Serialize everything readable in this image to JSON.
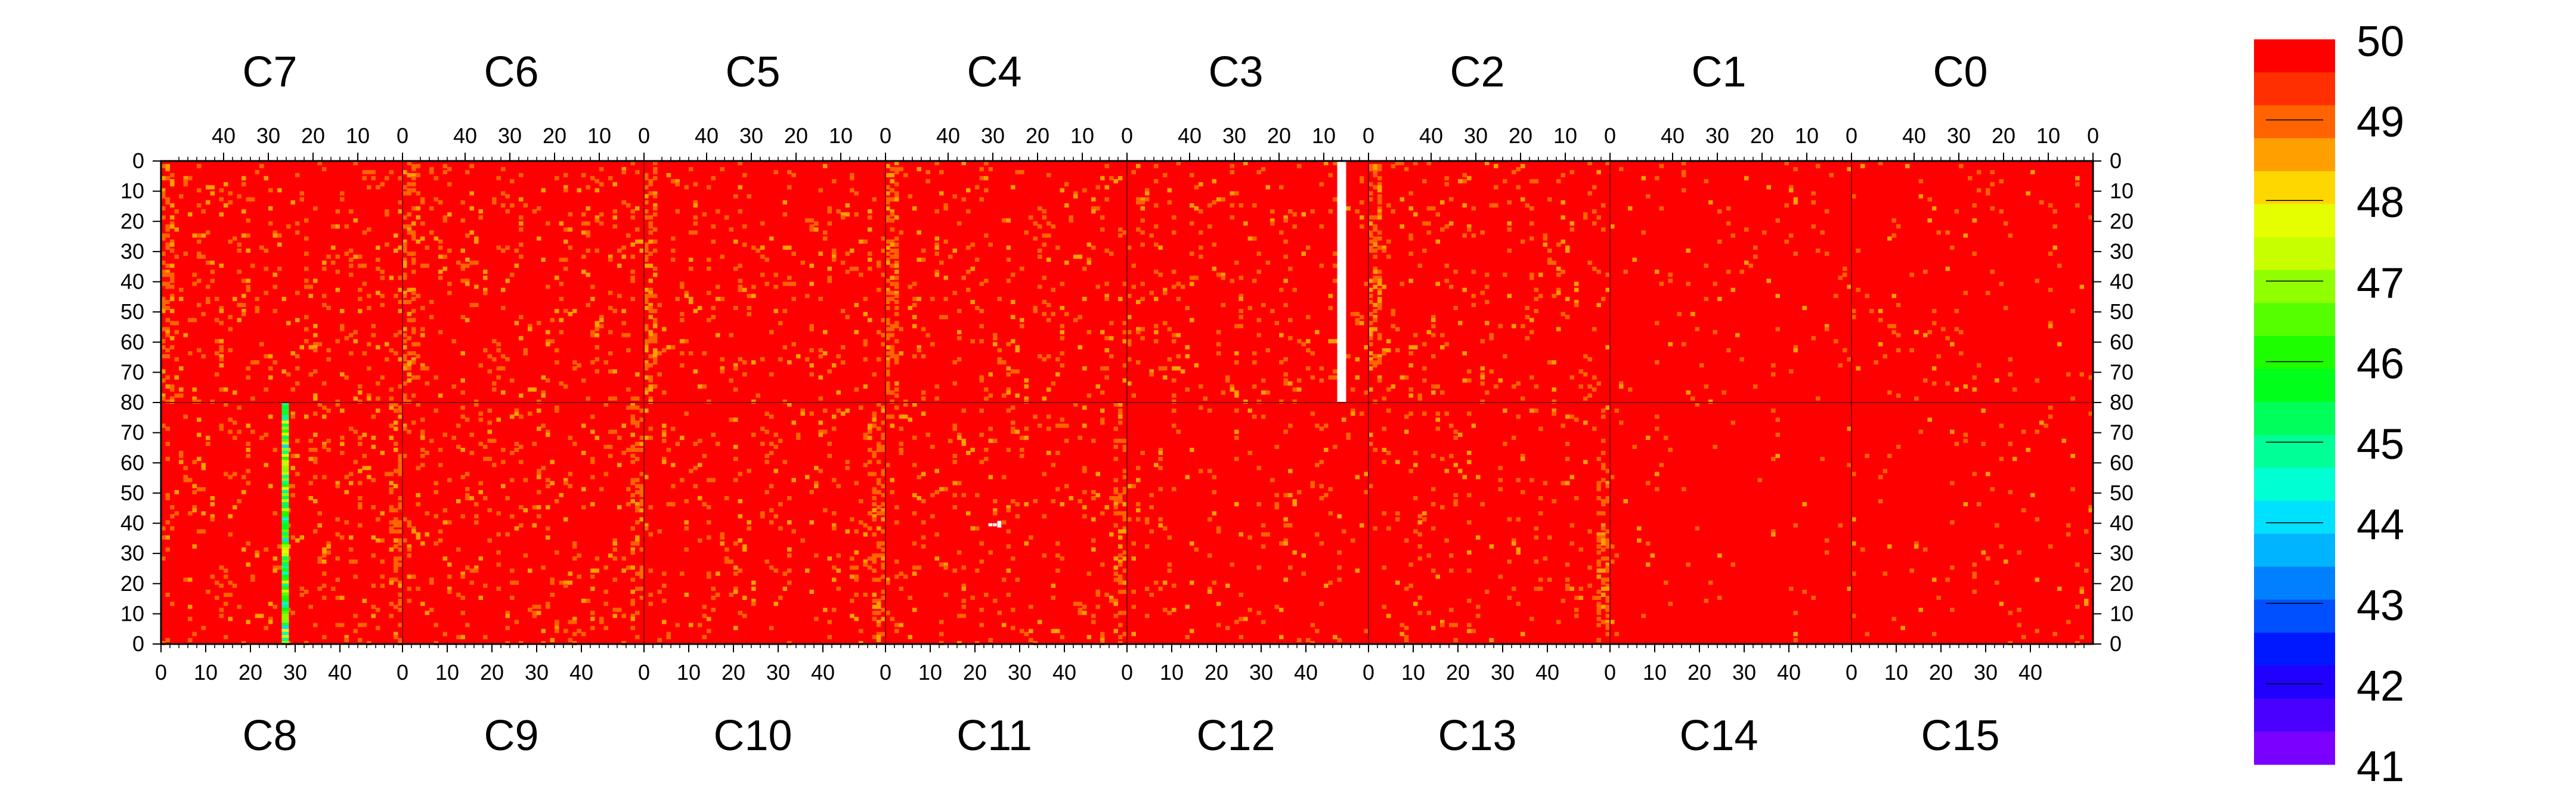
{
  "chart_data": {
    "type": "heatmap",
    "title": "",
    "top_chip_labels": [
      "C7",
      "C6",
      "C5",
      "C4",
      "C3",
      "C2",
      "C1",
      "C0"
    ],
    "bottom_chip_labels": [
      "C8",
      "C9",
      "C10",
      "C11",
      "C12",
      "C13",
      "C14",
      "C15"
    ],
    "top_x_ticks": [
      "40",
      "30",
      "20",
      "10",
      "0"
    ],
    "bottom_x_ticks": [
      "0",
      "10",
      "20",
      "30",
      "40"
    ],
    "y_ticks_top_half": [
      "0",
      "10",
      "20",
      "30",
      "40",
      "50",
      "60",
      "70",
      "80"
    ],
    "y_ticks_bottom_half": [
      "70",
      "60",
      "50",
      "40",
      "30",
      "20",
      "10",
      "0"
    ],
    "columns_per_chip": 54,
    "rows_per_half": 80,
    "z_range": [
      41,
      50
    ],
    "colorbar_labels": [
      "50",
      "49",
      "48",
      "47",
      "46",
      "45",
      "44",
      "43",
      "42",
      "41"
    ],
    "colorbar_colors": [
      "#ff0000",
      "#ff2f00",
      "#ff6400",
      "#ffa000",
      "#ffd700",
      "#e6ff00",
      "#c8ff00",
      "#90ff00",
      "#55ff00",
      "#1dff00",
      "#00ff1a",
      "#00ff5a",
      "#00ff96",
      "#00ffd2",
      "#00e0ff",
      "#00b4ff",
      "#0080ff",
      "#0050ff",
      "#0018ff",
      "#2000ff",
      "#4a00ff",
      "#7a00ff"
    ],
    "baseline_value": 50,
    "features": [
      {
        "description": "masked (white) column",
        "chip": "C3",
        "column": 7,
        "rows": "0-80 (top half)",
        "value": null
      },
      {
        "description": "low-value column",
        "chip": "C8",
        "column": 28,
        "rows": "0-80 (bottom half)",
        "values_range": [
          44,
          48
        ]
      },
      {
        "description": "masked pixels",
        "chip": "C11",
        "columns": [
          23,
          24,
          25
        ],
        "row": 39,
        "value": null
      },
      {
        "description": "noisy columns (49-47)",
        "chips": [
          "C7/C8",
          "C6/C9",
          "C5/C10",
          "C4/C11",
          "C2/C13"
        ],
        "note": "near column 0 of each chip"
      },
      {
        "description": "quiet chips (mostly 50)",
        "chips": [
          "C1",
          "C0",
          "C14",
          "C15"
        ]
      }
    ]
  }
}
